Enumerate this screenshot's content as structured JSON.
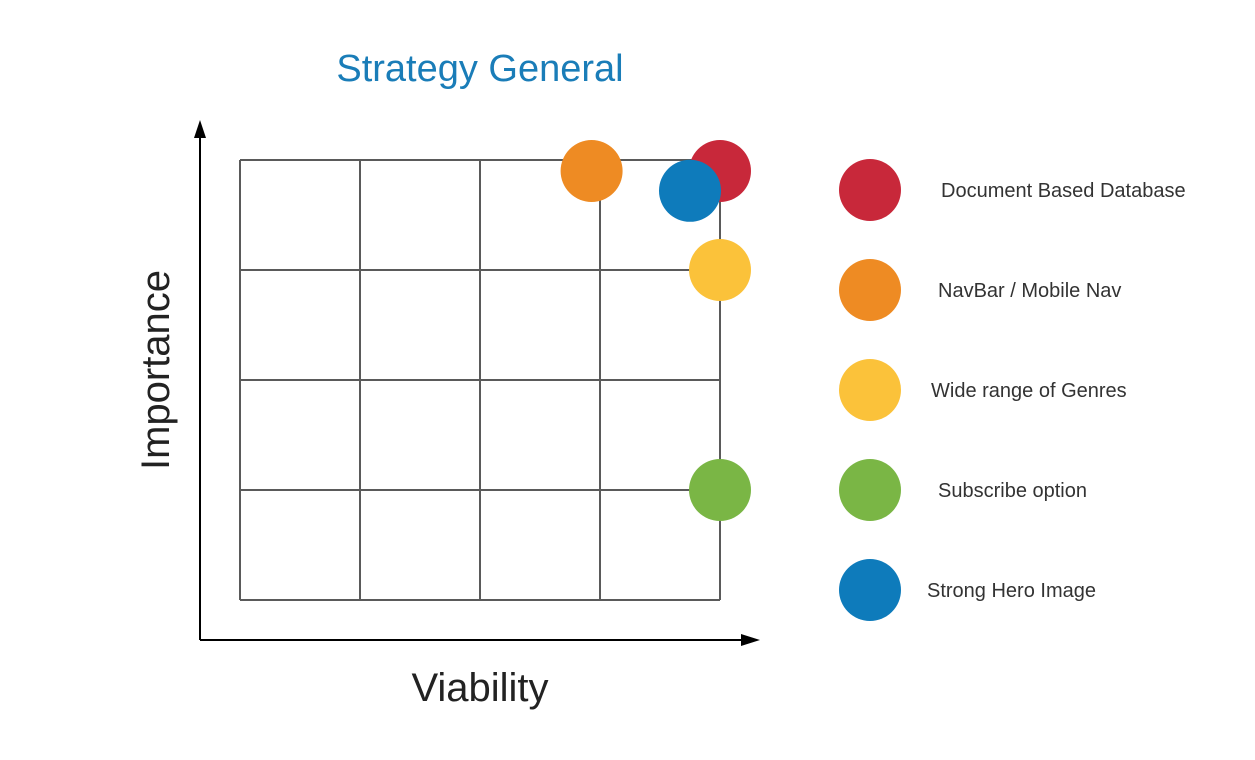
{
  "chart_data": {
    "type": "scatter",
    "title": "Strategy General",
    "xlabel": "Viability",
    "ylabel": "Importance",
    "xlim": [
      0,
      4
    ],
    "ylim": [
      0,
      4
    ],
    "grid": true,
    "legend_position": "right",
    "series": [
      {
        "name": "Document Based Database",
        "color": "#c8283a",
        "x": 4.0,
        "y": 3.9
      },
      {
        "name": "NavBar / Mobile Nav",
        "color": "#ee8b23",
        "x": 2.93,
        "y": 3.9
      },
      {
        "name": "Wide range of Genres",
        "color": "#fbc23a",
        "x": 4.0,
        "y": 3.0
      },
      {
        "name": "Subscribe option",
        "color": "#7ab645",
        "x": 4.0,
        "y": 1.0
      },
      {
        "name": "Strong Hero Image",
        "color": "#0e7bbb",
        "x": 3.75,
        "y": 3.72
      }
    ]
  }
}
